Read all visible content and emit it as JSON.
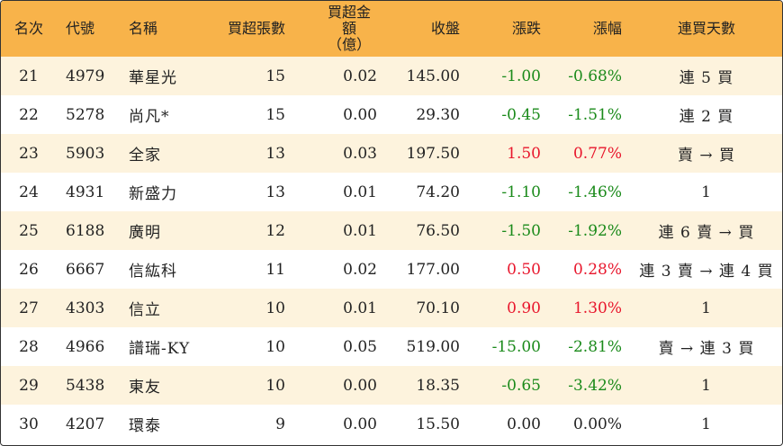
{
  "headers": {
    "rank": "名次",
    "code": "代號",
    "name": "名稱",
    "net_buy_lots": "買超張數",
    "net_buy_amount_line1": "買超金額",
    "net_buy_amount_line2": "（億）",
    "close": "收盤",
    "change": "漲跌",
    "change_pct": "漲幅",
    "consecutive_days": "連買天數"
  },
  "colors": {
    "header_bg": "#f8b34a",
    "stripe_bg": "#fdf3dd",
    "up": "#e8162c",
    "down": "#1a8a1a",
    "flat": "#222222"
  },
  "rows": [
    {
      "rank": "21",
      "code": "4979",
      "name": "華星光",
      "lots": "15",
      "amount": "0.02",
      "close": "145.00",
      "change": "-1.00",
      "pct": "-0.68%",
      "trend": "down",
      "days": "連 5 買"
    },
    {
      "rank": "22",
      "code": "5278",
      "name": "尚凡*",
      "lots": "15",
      "amount": "0.00",
      "close": "29.30",
      "change": "-0.45",
      "pct": "-1.51%",
      "trend": "down",
      "days": "連 2 買"
    },
    {
      "rank": "23",
      "code": "5903",
      "name": "全家",
      "lots": "13",
      "amount": "0.03",
      "close": "197.50",
      "change": "1.50",
      "pct": "0.77%",
      "trend": "up",
      "days": "賣 → 買"
    },
    {
      "rank": "24",
      "code": "4931",
      "name": "新盛力",
      "lots": "13",
      "amount": "0.01",
      "close": "74.20",
      "change": "-1.10",
      "pct": "-1.46%",
      "trend": "down",
      "days": "1"
    },
    {
      "rank": "25",
      "code": "6188",
      "name": "廣明",
      "lots": "12",
      "amount": "0.01",
      "close": "76.50",
      "change": "-1.50",
      "pct": "-1.92%",
      "trend": "down",
      "days": "連 6 賣 → 買"
    },
    {
      "rank": "26",
      "code": "6667",
      "name": "信紘科",
      "lots": "11",
      "amount": "0.02",
      "close": "177.00",
      "change": "0.50",
      "pct": "0.28%",
      "trend": "up",
      "days": "連 3 賣 → 連 4 買"
    },
    {
      "rank": "27",
      "code": "4303",
      "name": "信立",
      "lots": "10",
      "amount": "0.01",
      "close": "70.10",
      "change": "0.90",
      "pct": "1.30%",
      "trend": "up",
      "days": "1"
    },
    {
      "rank": "28",
      "code": "4966",
      "name": "譜瑞-KY",
      "lots": "10",
      "amount": "0.05",
      "close": "519.00",
      "change": "-15.00",
      "pct": "-2.81%",
      "trend": "down",
      "days": "賣 → 連 3 買"
    },
    {
      "rank": "29",
      "code": "5438",
      "name": "東友",
      "lots": "10",
      "amount": "0.00",
      "close": "18.35",
      "change": "-0.65",
      "pct": "-3.42%",
      "trend": "down",
      "days": "1"
    },
    {
      "rank": "30",
      "code": "4207",
      "name": "環泰",
      "lots": "9",
      "amount": "0.00",
      "close": "15.50",
      "change": "0.00",
      "pct": "0.00%",
      "trend": "flat",
      "days": "1"
    }
  ]
}
